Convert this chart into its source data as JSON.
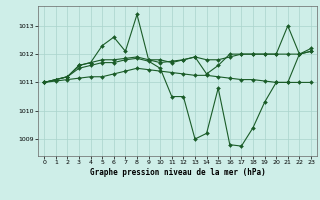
{
  "title": "Graphe pression niveau de la mer (hPa)",
  "background_color": "#ceeee8",
  "grid_color": "#aad4cc",
  "line_color": "#1a5c28",
  "xlim": [
    -0.5,
    23.5
  ],
  "ylim": [
    1008.4,
    1013.7
  ],
  "yticks": [
    1009,
    1010,
    1011,
    1012,
    1013
  ],
  "xticks": [
    0,
    1,
    2,
    3,
    4,
    5,
    6,
    7,
    8,
    9,
    10,
    11,
    12,
    13,
    14,
    15,
    16,
    17,
    18,
    19,
    20,
    21,
    22,
    23
  ],
  "lines": [
    {
      "x": [
        0,
        1,
        2,
        3,
        4,
        5,
        6,
        7,
        8,
        9,
        10,
        11,
        12,
        13,
        14,
        15,
        16,
        17,
        18,
        19,
        20,
        21,
        22,
        23
      ],
      "y": [
        1011.0,
        1011.1,
        1011.2,
        1011.6,
        1011.7,
        1012.3,
        1012.6,
        1012.1,
        1013.4,
        1011.8,
        1011.8,
        1011.7,
        1011.8,
        1011.9,
        1011.3,
        1011.6,
        1012.0,
        1012.0,
        1012.0,
        1012.0,
        1012.0,
        1013.0,
        1012.0,
        1012.2
      ]
    },
    {
      "x": [
        0,
        1,
        2,
        3,
        4,
        5,
        6,
        7,
        8,
        9,
        10,
        11,
        12,
        13,
        14,
        15,
        16,
        17,
        18,
        19,
        20,
        21,
        22,
        23
      ],
      "y": [
        1011.0,
        1011.1,
        1011.2,
        1011.6,
        1011.7,
        1011.8,
        1011.8,
        1011.85,
        1011.9,
        1011.8,
        1011.7,
        1011.75,
        1011.8,
        1011.9,
        1011.8,
        1011.8,
        1011.9,
        1012.0,
        1012.0,
        1012.0,
        1012.0,
        1012.0,
        1012.0,
        1012.1
      ]
    },
    {
      "x": [
        0,
        1,
        2,
        3,
        4,
        5,
        6,
        7,
        8,
        9,
        10,
        11,
        12,
        13,
        14,
        15,
        16,
        17,
        18,
        19,
        20,
        21,
        22,
        23
      ],
      "y": [
        1011.0,
        1011.1,
        1011.2,
        1011.5,
        1011.6,
        1011.7,
        1011.7,
        1011.8,
        1011.85,
        1011.75,
        1011.5,
        1010.5,
        1010.5,
        1009.0,
        1009.2,
        1010.8,
        1008.8,
        1008.75,
        1009.4,
        1010.3,
        1011.0,
        1011.0,
        1012.0,
        1012.1
      ]
    },
    {
      "x": [
        0,
        1,
        2,
        3,
        4,
        5,
        6,
        7,
        8,
        9,
        10,
        11,
        12,
        13,
        14,
        15,
        16,
        17,
        18,
        19,
        20,
        21,
        22,
        23
      ],
      "y": [
        1011.0,
        1011.05,
        1011.1,
        1011.15,
        1011.2,
        1011.2,
        1011.3,
        1011.4,
        1011.5,
        1011.45,
        1011.4,
        1011.35,
        1011.3,
        1011.25,
        1011.25,
        1011.2,
        1011.15,
        1011.1,
        1011.1,
        1011.05,
        1011.0,
        1011.0,
        1011.0,
        1011.0
      ]
    }
  ]
}
